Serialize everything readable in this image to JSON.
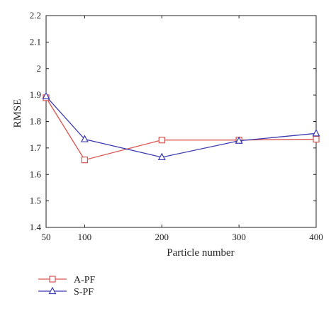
{
  "chart_data": {
    "type": "line",
    "title": "",
    "xlabel": "Particle number",
    "ylabel": "RMSE",
    "x": [
      50,
      100,
      200,
      300,
      400
    ],
    "x_ticks": [
      "50",
      "100",
      "200",
      "300",
      "400"
    ],
    "ylim": [
      1.4,
      2.2
    ],
    "y_ticks": [
      "1.4",
      "1.5",
      "1.6",
      "1.7",
      "1.8",
      "1.9",
      "2",
      "2.1",
      "2.2"
    ],
    "grid": false,
    "legend_position": "below-left",
    "series": [
      {
        "name": "A-PF",
        "color": "#d9534f",
        "marker": "square",
        "values": [
          1.89,
          1.655,
          1.73,
          1.73,
          1.733
        ]
      },
      {
        "name": "S-PF",
        "color": "#3b3bb3",
        "marker": "triangle",
        "values": [
          1.895,
          1.733,
          1.665,
          1.727,
          1.755
        ]
      }
    ]
  }
}
